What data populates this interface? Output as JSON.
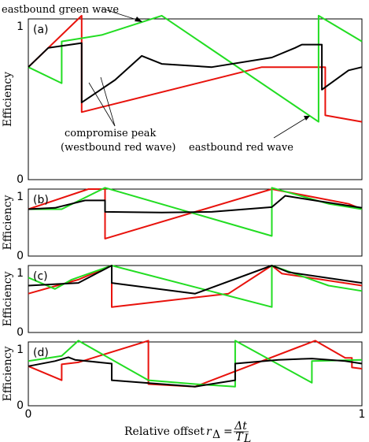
{
  "chart_data": {
    "type": "line",
    "xlabel": "Relative offset",
    "xlabel_math": "r",
    "xlabel_sub": "Δ",
    "xlabel_frac_num": "Δt",
    "xlabel_frac_den": "T",
    "xlabel_frac_den_sub": "L",
    "ylabel": "Efficiency",
    "xlim": [
      0,
      1
    ],
    "x_ticks": [
      "0",
      "1"
    ],
    "colors": {
      "red": "#e8120c",
      "green": "#22dd22",
      "black": "#000000"
    },
    "annotations": {
      "eastbound_green_wave": "eastbound green wave",
      "compromise_peak_1": "compromise peak",
      "compromise_peak_2": "(westbound red wave)",
      "eastbound_red_wave": "eastbound red wave"
    },
    "panels": [
      {
        "label": "(a)",
        "ylim": [
          0,
          1
        ],
        "y_ticks": [
          "0",
          "1"
        ],
        "series": [
          {
            "color": "red",
            "points": [
              [
                0,
                0.7
              ],
              [
                0.16,
                1.02
              ],
              [
                0.16,
                0.42
              ],
              [
                0.7,
                0.7
              ],
              [
                0.7,
                0.7
              ],
              [
                0.89,
                0.7
              ],
              [
                0.89,
                0.4
              ],
              [
                1,
                0.36
              ]
            ]
          },
          {
            "color": "green",
            "points": [
              [
                0,
                0.7
              ],
              [
                0.1,
                0.6
              ],
              [
                0.1,
                0.86
              ],
              [
                0.22,
                0.9
              ],
              [
                0.4,
                1.02
              ],
              [
                0.87,
                0.36
              ],
              [
                0.87,
                1.02
              ],
              [
                1,
                0.86
              ]
            ]
          },
          {
            "color": "black",
            "points": [
              [
                0,
                0.7
              ],
              [
                0.06,
                0.82
              ],
              [
                0.16,
                0.85
              ],
              [
                0.16,
                0.48
              ],
              [
                0.26,
                0.62
              ],
              [
                0.34,
                0.77
              ],
              [
                0.4,
                0.72
              ],
              [
                0.55,
                0.7
              ],
              [
                0.73,
                0.76
              ],
              [
                0.8,
                0.82
              ],
              [
                0.82,
                0.84
              ],
              [
                0.88,
                0.84
              ],
              [
                0.88,
                0.56
              ],
              [
                0.96,
                0.68
              ],
              [
                1,
                0.7
              ]
            ]
          }
        ]
      },
      {
        "label": "(b)",
        "ylim": [
          0,
          1
        ],
        "y_ticks": [
          "0",
          "1"
        ],
        "series": [
          {
            "color": "red",
            "points": [
              [
                0,
                0.7
              ],
              [
                0.18,
                1.0
              ],
              [
                0.23,
                1.0
              ],
              [
                0.23,
                0.26
              ],
              [
                0.73,
                1.0
              ],
              [
                0.96,
                0.78
              ],
              [
                0.98,
                0.74
              ],
              [
                1,
                0.7
              ]
            ]
          },
          {
            "color": "green",
            "points": [
              [
                0,
                0.7
              ],
              [
                0.1,
                0.7
              ],
              [
                0.23,
                1.02
              ],
              [
                0.73,
                0.3
              ],
              [
                0.73,
                1.02
              ],
              [
                0.9,
                0.78
              ],
              [
                1,
                0.7
              ]
            ]
          },
          {
            "color": "black",
            "points": [
              [
                0,
                0.7
              ],
              [
                0.08,
                0.72
              ],
              [
                0.17,
                0.83
              ],
              [
                0.23,
                0.83
              ],
              [
                0.23,
                0.66
              ],
              [
                0.4,
                0.65
              ],
              [
                0.55,
                0.66
              ],
              [
                0.73,
                0.73
              ],
              [
                0.77,
                0.9
              ],
              [
                0.82,
                0.86
              ],
              [
                1,
                0.72
              ]
            ]
          }
        ]
      },
      {
        "label": "(c)",
        "ylim": [
          0,
          1
        ],
        "y_ticks": [
          "0",
          "1"
        ],
        "series": [
          {
            "color": "red",
            "points": [
              [
                0,
                0.58
              ],
              [
                0.15,
                0.79
              ],
              [
                0.25,
                1.0
              ],
              [
                0.25,
                0.38
              ],
              [
                0.6,
                0.58
              ],
              [
                0.73,
                1.0
              ],
              [
                0.76,
                0.88
              ],
              [
                1,
                0.7
              ]
            ]
          },
          {
            "color": "green",
            "points": [
              [
                0,
                0.82
              ],
              [
                0.08,
                0.65
              ],
              [
                0.13,
                0.79
              ],
              [
                0.25,
                1.0
              ],
              [
                0.73,
                0.38
              ],
              [
                0.73,
                1.0
              ],
              [
                0.9,
                0.7
              ],
              [
                1,
                0.62
              ]
            ]
          },
          {
            "color": "black",
            "points": [
              [
                0,
                0.7
              ],
              [
                0.15,
                0.74
              ],
              [
                0.25,
                1.0
              ],
              [
                0.25,
                0.74
              ],
              [
                0.5,
                0.58
              ],
              [
                0.73,
                1.0
              ],
              [
                0.78,
                0.9
              ],
              [
                1,
                0.74
              ]
            ]
          }
        ]
      },
      {
        "label": "(d)",
        "ylim": [
          0,
          1
        ],
        "y_ticks": [
          "0",
          "1"
        ],
        "series": [
          {
            "color": "red",
            "points": [
              [
                0,
                0.62
              ],
              [
                0.1,
                0.4
              ],
              [
                0.1,
                0.65
              ],
              [
                0.15,
                0.68
              ],
              [
                0.36,
                1.02
              ],
              [
                0.36,
                0.34
              ],
              [
                0.5,
                0.3
              ],
              [
                0.86,
                1.02
              ],
              [
                0.95,
                0.75
              ],
              [
                0.97,
                0.75
              ],
              [
                0.97,
                0.6
              ],
              [
                1,
                0.58
              ]
            ]
          },
          {
            "color": "green",
            "points": [
              [
                0,
                0.7
              ],
              [
                0.1,
                0.78
              ],
              [
                0.15,
                1.02
              ],
              [
                0.36,
                0.4
              ],
              [
                0.5,
                0.34
              ],
              [
                0.62,
                0.3
              ],
              [
                0.62,
                1.02
              ],
              [
                0.85,
                0.36
              ],
              [
                0.85,
                0.7
              ],
              [
                1,
                0.72
              ]
            ]
          },
          {
            "color": "black",
            "points": [
              [
                0,
                0.62
              ],
              [
                0.08,
                0.7
              ],
              [
                0.12,
                0.76
              ],
              [
                0.14,
                0.72
              ],
              [
                0.25,
                0.66
              ],
              [
                0.25,
                0.4
              ],
              [
                0.5,
                0.3
              ],
              [
                0.62,
                0.4
              ],
              [
                0.62,
                0.66
              ],
              [
                0.75,
                0.72
              ],
              [
                0.85,
                0.74
              ],
              [
                0.95,
                0.7
              ],
              [
                1,
                0.66
              ]
            ]
          }
        ]
      }
    ]
  }
}
